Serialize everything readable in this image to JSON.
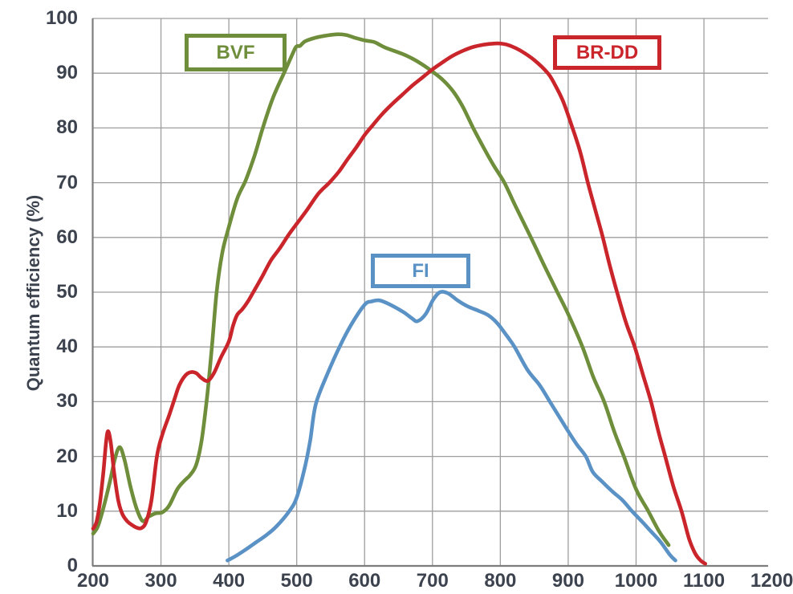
{
  "colors": {
    "background": "#ffffff",
    "grid": "#9e9e9e",
    "axis": "#7d7d7d",
    "tick_text": "#3d434e"
  },
  "y_axis": {
    "title": "Quantum efficiency (%)"
  },
  "legend": {
    "bvf": {
      "label": "BVF",
      "color": "#6f8e3b"
    },
    "brdd": {
      "label": "BR-DD",
      "color": "#c9252b"
    },
    "fi": {
      "label": "FI",
      "color": "#5b92c6"
    }
  },
  "chart_data": {
    "type": "line",
    "title": "",
    "xlabel": "",
    "ylabel": "Quantum efficiency (%)",
    "xlim": [
      200,
      1200
    ],
    "ylim": [
      0,
      100
    ],
    "x_ticks": [
      200,
      300,
      400,
      500,
      600,
      700,
      800,
      900,
      1000,
      1100,
      1200
    ],
    "y_ticks": [
      0,
      10,
      20,
      30,
      40,
      50,
      60,
      70,
      80,
      90,
      100
    ],
    "grid": true,
    "legend_style": "labeled boxes inside plot area",
    "series": [
      {
        "name": "BVF",
        "color": "#6f8e3b",
        "points": [
          [
            200,
            5.9
          ],
          [
            207,
            7.2
          ],
          [
            215,
            10.5
          ],
          [
            225,
            15.5
          ],
          [
            232,
            19.5
          ],
          [
            239,
            21.7
          ],
          [
            246,
            19.5
          ],
          [
            255,
            14.5
          ],
          [
            264,
            10.5
          ],
          [
            273,
            8.2
          ],
          [
            282,
            9.0
          ],
          [
            292,
            9.6
          ],
          [
            302,
            9.8
          ],
          [
            312,
            11
          ],
          [
            324,
            14
          ],
          [
            334,
            15.5
          ],
          [
            343,
            16.6
          ],
          [
            352,
            18.5
          ],
          [
            360,
            23
          ],
          [
            368,
            31
          ],
          [
            375,
            40
          ],
          [
            382,
            50
          ],
          [
            390,
            57
          ],
          [
            398,
            61
          ],
          [
            412,
            67
          ],
          [
            425,
            70.5
          ],
          [
            438,
            75
          ],
          [
            450,
            80
          ],
          [
            465,
            85.5
          ],
          [
            483,
            90.5
          ],
          [
            492,
            93
          ],
          [
            499,
            94.8
          ],
          [
            505,
            95.0
          ],
          [
            512,
            95.8
          ],
          [
            525,
            96.4
          ],
          [
            540,
            96.8
          ],
          [
            558,
            97.1
          ],
          [
            572,
            97.0
          ],
          [
            585,
            96.5
          ],
          [
            600,
            96.0
          ],
          [
            614,
            95.7
          ],
          [
            622,
            95.2
          ],
          [
            630,
            94.7
          ],
          [
            643,
            94.1
          ],
          [
            656,
            93.5
          ],
          [
            670,
            92.7
          ],
          [
            685,
            91.6
          ],
          [
            700,
            90.3
          ],
          [
            716,
            88.7
          ],
          [
            731,
            86.6
          ],
          [
            745,
            83.8
          ],
          [
            760,
            80
          ],
          [
            775,
            76.5
          ],
          [
            790,
            73.2
          ],
          [
            806,
            70
          ],
          [
            822,
            65.8
          ],
          [
            845,
            60
          ],
          [
            865,
            54.8
          ],
          [
            884,
            50
          ],
          [
            900,
            46
          ],
          [
            921,
            40
          ],
          [
            937,
            34.5
          ],
          [
            953,
            30
          ],
          [
            968,
            24.5
          ],
          [
            982,
            20
          ],
          [
            1000,
            14
          ],
          [
            1018,
            10
          ],
          [
            1034,
            6.3
          ],
          [
            1048,
            3.8
          ]
        ]
      },
      {
        "name": "FI",
        "color": "#5b92c6",
        "points": [
          [
            398,
            1
          ],
          [
            410,
            1.8
          ],
          [
            425,
            3
          ],
          [
            440,
            4.3
          ],
          [
            455,
            5.6
          ],
          [
            470,
            7.2
          ],
          [
            489,
            10
          ],
          [
            500,
            12.5
          ],
          [
            512,
            18
          ],
          [
            520,
            23
          ],
          [
            528,
            29.5
          ],
          [
            545,
            35
          ],
          [
            563,
            40
          ],
          [
            580,
            44
          ],
          [
            600,
            47.7
          ],
          [
            610,
            48.3
          ],
          [
            622,
            48.5
          ],
          [
            638,
            47.7
          ],
          [
            658,
            46.3
          ],
          [
            670,
            45.2
          ],
          [
            678,
            44.7
          ],
          [
            690,
            46
          ],
          [
            701,
            48.6
          ],
          [
            711,
            50
          ],
          [
            723,
            49.8
          ],
          [
            737,
            48.5
          ],
          [
            752,
            47.4
          ],
          [
            768,
            46.6
          ],
          [
            782,
            45.8
          ],
          [
            795,
            44.4
          ],
          [
            808,
            42.3
          ],
          [
            821,
            40
          ],
          [
            840,
            35.8
          ],
          [
            858,
            33
          ],
          [
            873,
            30
          ],
          [
            898,
            25
          ],
          [
            912,
            22.3
          ],
          [
            926,
            20
          ],
          [
            936,
            17.2
          ],
          [
            950,
            15.4
          ],
          [
            965,
            13.6
          ],
          [
            980,
            12
          ],
          [
            994,
            10
          ],
          [
            1008,
            8.2
          ],
          [
            1022,
            6.3
          ],
          [
            1036,
            4.4
          ],
          [
            1050,
            2
          ],
          [
            1058,
            1
          ]
        ]
      },
      {
        "name": "BR-DD",
        "color": "#c9252b",
        "points": [
          [
            200,
            6.8
          ],
          [
            205,
            8
          ],
          [
            210,
            11.5
          ],
          [
            215,
            17
          ],
          [
            219,
            22.5
          ],
          [
            222,
            24.6
          ],
          [
            226,
            22.5
          ],
          [
            231,
            17
          ],
          [
            237,
            12
          ],
          [
            243,
            9.5
          ],
          [
            250,
            8.2
          ],
          [
            257,
            7.5
          ],
          [
            264,
            7.0
          ],
          [
            271,
            6.9
          ],
          [
            278,
            8.0
          ],
          [
            286,
            12
          ],
          [
            294,
            20
          ],
          [
            302,
            24
          ],
          [
            312,
            27.5
          ],
          [
            320,
            30.5
          ],
          [
            327,
            33
          ],
          [
            336,
            34.8
          ],
          [
            344,
            35.4
          ],
          [
            352,
            35.2
          ],
          [
            360,
            34.3
          ],
          [
            369,
            33.8
          ],
          [
            378,
            35.2
          ],
          [
            388,
            38
          ],
          [
            400,
            41
          ],
          [
            406,
            43.8
          ],
          [
            412,
            45.8
          ],
          [
            420,
            46.9
          ],
          [
            428,
            48.3
          ],
          [
            436,
            50
          ],
          [
            448,
            52.6
          ],
          [
            462,
            55.8
          ],
          [
            475,
            58
          ],
          [
            487,
            60.3
          ],
          [
            500,
            62.5
          ],
          [
            515,
            65
          ],
          [
            532,
            68
          ],
          [
            548,
            70
          ],
          [
            562,
            72
          ],
          [
            575,
            74.3
          ],
          [
            588,
            76.5
          ],
          [
            600,
            78.7
          ],
          [
            612,
            80.5
          ],
          [
            625,
            82.4
          ],
          [
            640,
            84.3
          ],
          [
            655,
            86
          ],
          [
            670,
            87.7
          ],
          [
            685,
            89.2
          ],
          [
            700,
            90.7
          ],
          [
            715,
            92
          ],
          [
            730,
            93.2
          ],
          [
            745,
            94.1
          ],
          [
            760,
            94.8
          ],
          [
            775,
            95.2
          ],
          [
            788,
            95.4
          ],
          [
            802,
            95.4
          ],
          [
            815,
            95.0
          ],
          [
            830,
            94.1
          ],
          [
            850,
            92.4
          ],
          [
            870,
            90
          ],
          [
            880,
            88
          ],
          [
            892,
            85
          ],
          [
            905,
            80.5
          ],
          [
            918,
            75.5
          ],
          [
            929,
            70
          ],
          [
            940,
            65
          ],
          [
            950,
            60.5
          ],
          [
            961,
            55
          ],
          [
            972,
            50
          ],
          [
            985,
            44.5
          ],
          [
            998,
            40
          ],
          [
            1010,
            35
          ],
          [
            1022,
            30
          ],
          [
            1033,
            24.5
          ],
          [
            1043,
            20
          ],
          [
            1055,
            14.5
          ],
          [
            1067,
            10
          ],
          [
            1078,
            5
          ],
          [
            1087,
            2.3
          ],
          [
            1095,
            1.0
          ],
          [
            1102,
            0.4
          ]
        ]
      }
    ]
  }
}
